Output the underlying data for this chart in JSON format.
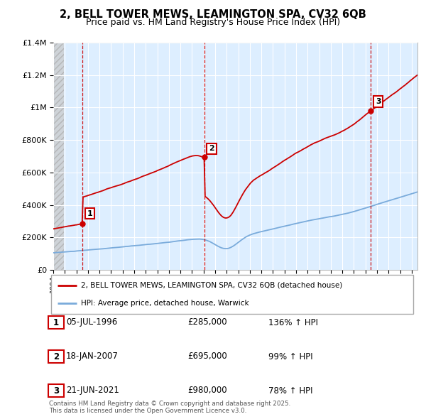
{
  "title": "2, BELL TOWER MEWS, LEAMINGTON SPA, CV32 6QB",
  "subtitle": "Price paid vs. HM Land Registry's House Price Index (HPI)",
  "title_fontsize": 10.5,
  "subtitle_fontsize": 9,
  "xlim_start": 1994.0,
  "xlim_end": 2025.5,
  "ylim_min": 0,
  "ylim_max": 1400000,
  "yticks": [
    0,
    200000,
    400000,
    600000,
    800000,
    1000000,
    1200000,
    1400000
  ],
  "ytick_labels": [
    "£0",
    "£200K",
    "£400K",
    "£600K",
    "£800K",
    "£1M",
    "£1.2M",
    "£1.4M"
  ],
  "sale_dates": [
    1996.51,
    2007.05,
    2021.47
  ],
  "sale_prices": [
    285000,
    695000,
    980000
  ],
  "sale_labels": [
    "1",
    "2",
    "3"
  ],
  "red_line_color": "#cc0000",
  "blue_line_color": "#7aabdb",
  "vline_color": "#cc0000",
  "chart_bg_color": "#ddeeff",
  "grid_color": "#ffffff",
  "legend_label_red": "2, BELL TOWER MEWS, LEAMINGTON SPA, CV32 6QB (detached house)",
  "legend_label_blue": "HPI: Average price, detached house, Warwick",
  "table_rows": [
    {
      "num": "1",
      "date": "05-JUL-1996",
      "price": "£285,000",
      "hpi": "136% ↑ HPI"
    },
    {
      "num": "2",
      "date": "18-JAN-2007",
      "price": "£695,000",
      "hpi": "99% ↑ HPI"
    },
    {
      "num": "3",
      "date": "21-JUN-2021",
      "price": "£980,000",
      "hpi": "78% ↑ HPI"
    }
  ],
  "footnote": "Contains HM Land Registry data © Crown copyright and database right 2025.\nThis data is licensed under the Open Government Licence v3.0."
}
